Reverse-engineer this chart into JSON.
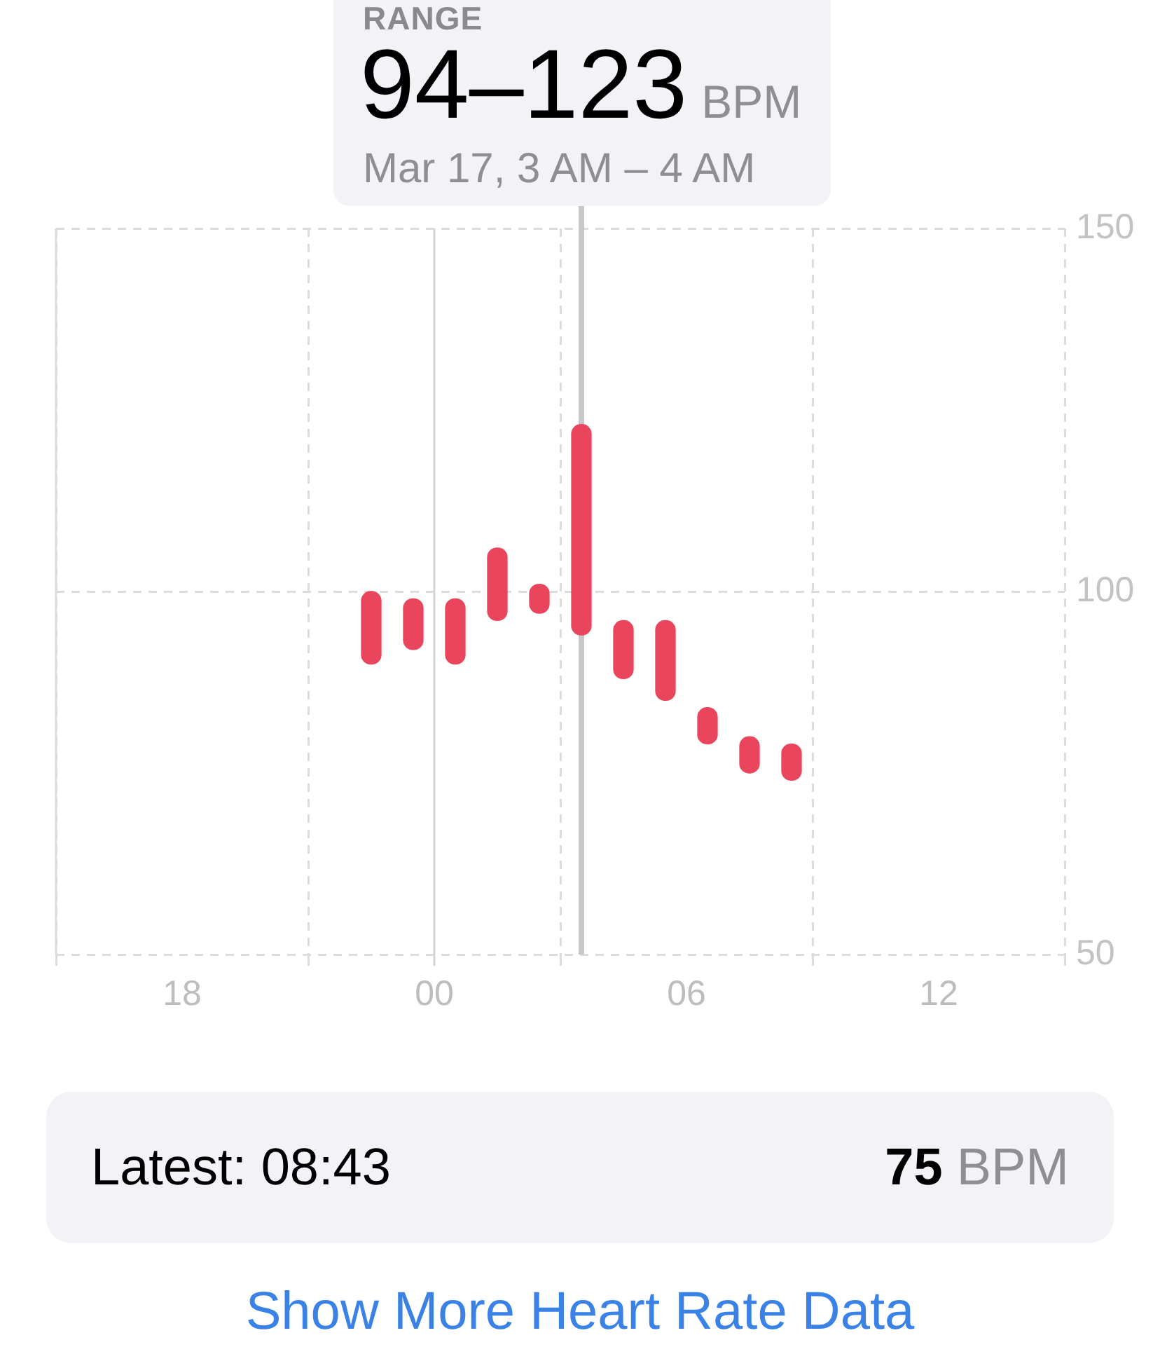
{
  "chart_data": {
    "type": "bar",
    "x": [
      "--03-16T22:30",
      "--03-16T23:30",
      "--03-17T00:30",
      "--03-17T01:30",
      "--03-17T02:30",
      "--03-17T03:30",
      "--03-17T04:30",
      "--03-17T05:30",
      "--03-17T06:30",
      "--03-17T07:30",
      "--03-17T08:30"
    ],
    "values": [
      10,
      7,
      9,
      10,
      4,
      29,
      8,
      11,
      5,
      5,
      5
    ],
    "base": [
      90,
      92,
      90,
      96,
      97,
      94,
      88,
      85,
      79,
      75,
      74
    ],
    "color": "#e9455c",
    "xlim": [
      "--03-16T15:00",
      "--03-17T15:00"
    ],
    "xticks": [
      {
        "value": "--03-16T18:00",
        "label": "18"
      },
      {
        "value": "--03-17T00:00",
        "label": "00"
      },
      {
        "value": "--03-17T06:00",
        "label": "06"
      },
      {
        "value": "--03-17T12:00",
        "label": "12"
      }
    ],
    "ylim": [
      50,
      150
    ],
    "yticks": [
      50,
      100,
      150
    ],
    "grid": true,
    "ref_lines": [
      {
        "axis": "x",
        "value": "--03-17T00:00",
        "color": "#d4d4d6"
      },
      {
        "axis": "x",
        "value": "--03-17T03:30",
        "color": "#c8c8cc"
      }
    ],
    "annotations": [
      "RANGE",
      "94–123",
      "BPM",
      "Mar 17, 3 AM – 4 AM",
      "Latest: 08:43",
      "75",
      "BPM",
      "Show More Heart Rate Data"
    ]
  }
}
